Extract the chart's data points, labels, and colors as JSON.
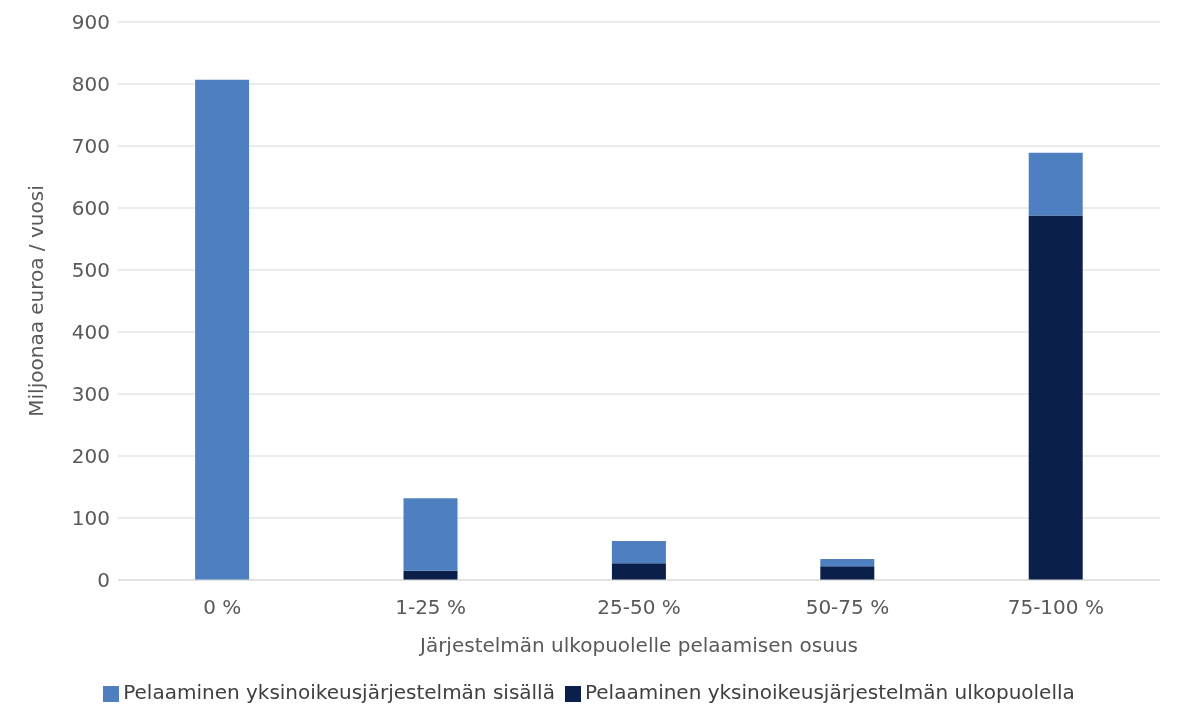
{
  "chart_data": {
    "type": "bar",
    "stacked": true,
    "xlabel": "Järjestelmän ulkopuolelle pelaamisen osuus",
    "ylabel": "Miljoonaa euroa / vuosi",
    "categories": [
      "0 %",
      "1-25 %",
      "25-50 %",
      "50-75 %",
      "75-100 %"
    ],
    "series": [
      {
        "name": "Pelaaminen yksinoikeusjärjestelmän ulkopuolella",
        "color": "#0b1f4b",
        "values": [
          0,
          15,
          27,
          22,
          588
        ]
      },
      {
        "name": "Pelaaminen yksinoikeusjärjestelmän sisällä",
        "color": "#4e7fc1",
        "values": [
          807,
          117,
          36,
          12,
          101
        ]
      }
    ],
    "ylim": [
      0,
      900
    ],
    "yticks": [
      0,
      100,
      200,
      300,
      400,
      500,
      600,
      700,
      800,
      900
    ],
    "grid": "y",
    "legend": "bottom"
  }
}
